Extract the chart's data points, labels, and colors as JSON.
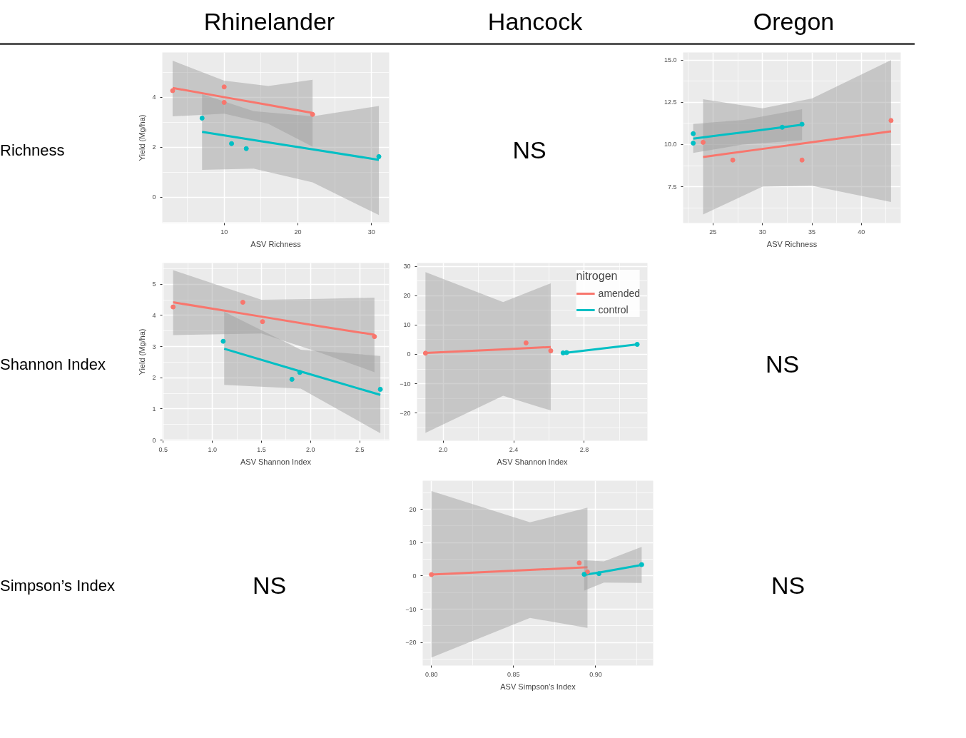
{
  "chart_data": [
    {
      "type": "other",
      "annotations": [
        "Rhinelander",
        "Hancock",
        "Oregon",
        "Richness",
        "Shannon Index",
        "Simpson’s Index"
      ]
    },
    {
      "type": "scatter",
      "xlabel": "ASV Richness",
      "ylabel": "Yield (Mg/ha)",
      "xlim": [
        1.6,
        32.4
      ],
      "ylim": [
        -1.03,
        5.8
      ],
      "xticks": [
        10,
        20,
        30
      ],
      "yticks": [
        0,
        2,
        4
      ],
      "grid": true,
      "marker": "circle",
      "series": [
        {
          "color": "#f8766d",
          "x": [
            3,
            10,
            10,
            22
          ],
          "values": [
            4.27,
            4.42,
            3.8,
            3.32
          ]
        },
        {
          "color": "#00bfc4",
          "x": [
            7,
            11,
            13,
            31
          ],
          "values": [
            3.17,
            2.15,
            1.95,
            1.63
          ]
        },
        {
          "type": "line",
          "marker": "none",
          "color": "#f8766d",
          "x": [
            3,
            10,
            16,
            22
          ],
          "values": [
            4.38,
            4.01,
            3.7,
            3.38
          ],
          "upper": [
            5.47,
            4.67,
            4.46,
            4.71
          ],
          "lower": [
            3.24,
            3.35,
            2.94,
            2.03
          ]
        },
        {
          "type": "line",
          "marker": "none",
          "color": "#00bfc4",
          "x": [
            7,
            14,
            22,
            31
          ],
          "values": [
            2.62,
            2.29,
            1.92,
            1.5
          ],
          "upper": [
            4.13,
            3.45,
            3.24,
            3.66
          ],
          "lower": [
            1.1,
            1.15,
            0.6,
            -0.71
          ]
        }
      ]
    },
    {
      "type": "other",
      "annotations": [
        "NS"
      ]
    },
    {
      "type": "scatter",
      "xlabel": "ASV Richness",
      "xlim": [
        21.98,
        43.98
      ],
      "ylim": [
        5.35,
        15.45
      ],
      "xticks": [
        25,
        30,
        35,
        40
      ],
      "yticks": [
        7.5,
        {
          "value": 10,
          "label": "10.0"
        },
        12.5,
        {
          "value": 15,
          "label": "15.0"
        }
      ],
      "grid": true,
      "marker": "circle",
      "series": [
        {
          "color": "#f8766d",
          "x": [
            24,
            27,
            34,
            43
          ],
          "values": [
            10.13,
            9.08,
            9.08,
            11.42
          ]
        },
        {
          "color": "#00bfc4",
          "x": [
            23,
            23,
            32,
            34
          ],
          "values": [
            10.64,
            10.08,
            11.02,
            11.2
          ]
        },
        {
          "type": "line",
          "marker": "none",
          "color": "#f8766d",
          "x": [
            24,
            30,
            35,
            43
          ],
          "values": [
            9.26,
            9.74,
            10.14,
            10.78
          ],
          "upper": [
            12.68,
            12.14,
            12.72,
            15.0
          ],
          "lower": [
            5.86,
            7.5,
            7.56,
            6.6
          ]
        },
        {
          "type": "line",
          "marker": "none",
          "color": "#00bfc4",
          "x": [
            23,
            28,
            34
          ],
          "values": [
            10.35,
            10.72,
            11.17
          ],
          "upper": [
            11.22,
            11.45,
            12.09
          ],
          "lower": [
            9.5,
            10.0,
            10.25
          ]
        }
      ]
    },
    {
      "type": "scatter",
      "xlabel": "ASV Shannon Index",
      "ylabel": "Yield (Mg/ha)",
      "xlim": [
        0.49,
        2.8
      ],
      "ylim": [
        -0.02,
        5.68
      ],
      "xticks": [
        0.5,
        {
          "value": 1,
          "label": "1.0"
        },
        1.5,
        {
          "value": 2,
          "label": "2.0"
        },
        2.5
      ],
      "yticks": [
        0,
        1,
        2,
        3,
        4,
        5
      ],
      "grid": true,
      "marker": "circle",
      "series": [
        {
          "color": "#f8766d",
          "x": [
            0.6,
            1.31,
            1.51,
            2.65
          ],
          "values": [
            4.27,
            4.42,
            3.8,
            3.32
          ]
        },
        {
          "color": "#00bfc4",
          "x": [
            1.11,
            1.81,
            1.89,
            2.71
          ],
          "values": [
            3.17,
            1.95,
            2.17,
            1.63
          ]
        },
        {
          "type": "line",
          "marker": "none",
          "color": "#f8766d",
          "x": [
            0.6,
            1.5,
            2.1,
            2.65
          ],
          "values": [
            4.42,
            3.96,
            3.65,
            3.38
          ],
          "upper": [
            5.45,
            4.5,
            4.53,
            4.57
          ],
          "lower": [
            3.37,
            3.42,
            2.8,
            2.18
          ]
        },
        {
          "type": "line",
          "marker": "none",
          "color": "#00bfc4",
          "x": [
            1.12,
            1.9,
            2.71
          ],
          "values": [
            2.93,
            2.2,
            1.45
          ],
          "upper": [
            4.12,
            2.9,
            2.7
          ],
          "lower": [
            1.77,
            1.65,
            0.22
          ]
        }
      ]
    },
    {
      "type": "scatter",
      "xlabel": "ASV Shannon Index",
      "legend_title": "nitrogen",
      "legend": "top right",
      "xlim": [
        1.852,
        3.158
      ],
      "ylim": [
        -29.4,
        31.1
      ],
      "xticks": [
        {
          "value": 2,
          "label": "2.0"
        },
        2.4,
        2.8
      ],
      "yticks": [
        -20,
        -10,
        0,
        10,
        20,
        30
      ],
      "grid": true,
      "marker": "circle",
      "series": [
        {
          "color": "#f8766d",
          "x": [
            1.9,
            2.47,
            2.61
          ],
          "values": [
            0.4,
            3.9,
            1.2
          ]
        },
        {
          "color": "#00bfc4",
          "x": [
            2.68,
            2.7,
            3.1
          ],
          "values": [
            0.5,
            0.6,
            3.4
          ]
        },
        {
          "type": "line",
          "marker": "none",
          "name": "amended",
          "color": "#f8766d",
          "x": [
            1.9,
            2.34,
            2.61
          ],
          "values": [
            0.5,
            1.7,
            2.5
          ],
          "upper": [
            28,
            17.8,
            24.2
          ],
          "lower": [
            -26.7,
            -14.1,
            -19.1
          ]
        },
        {
          "type": "line",
          "marker": "none",
          "name": "control",
          "color": "#00bfc4",
          "x": [
            2.68,
            3.1
          ],
          "values": [
            0.4,
            3.4
          ]
        }
      ]
    },
    {
      "type": "other",
      "annotations": [
        "NS"
      ]
    },
    {
      "type": "other",
      "annotations": [
        "NS"
      ]
    },
    {
      "type": "scatter",
      "xlabel": "ASV Simpson's Index",
      "xlim": [
        0.7947,
        0.935
      ],
      "ylim": [
        -26.9,
        28.6
      ],
      "xticks": [
        {
          "value": 0.8,
          "label": "0.80"
        },
        0.85,
        {
          "value": 0.9,
          "label": "0.90"
        }
      ],
      "yticks": [
        -20,
        -10,
        0,
        10,
        20
      ],
      "grid": true,
      "marker": "circle",
      "series": [
        {
          "color": "#f8766d",
          "x": [
            0.8,
            0.89,
            0.895
          ],
          "values": [
            0.4,
            3.9,
            1.2
          ]
        },
        {
          "color": "#00bfc4",
          "x": [
            0.893,
            0.902,
            0.928
          ],
          "values": [
            0.5,
            0.7,
            3.4
          ]
        },
        {
          "type": "line",
          "marker": "none",
          "color": "#f8766d",
          "x": [
            0.8,
            0.86,
            0.895
          ],
          "values": [
            0.4,
            1.8,
            2.6
          ],
          "upper": [
            25.5,
            16.1,
            20.5
          ],
          "lower": [
            -24.5,
            -12.6,
            -15.6
          ]
        },
        {
          "type": "line",
          "marker": "none",
          "color": "#00bfc4",
          "x": [
            0.893,
            0.905,
            0.928
          ],
          "values": [
            0.3,
            1.3,
            3.3
          ],
          "upper": [
            4.7,
            4.4,
            8.7
          ],
          "lower": [
            -4.4,
            -2.0,
            -2.1
          ]
        }
      ]
    },
    {
      "type": "other",
      "annotations": [
        "NS"
      ]
    }
  ]
}
